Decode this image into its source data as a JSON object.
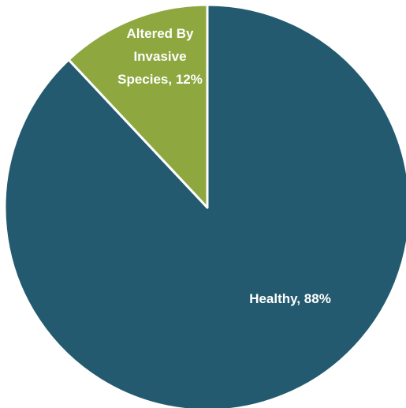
{
  "chart_data": {
    "type": "pie",
    "slices": [
      {
        "name": "Healthy",
        "value": 88,
        "label_lines": [
          "Healthy, 88%"
        ],
        "color": "#235a70"
      },
      {
        "name": "Altered By Invasive Species",
        "value": 12,
        "label_lines": [
          "Altered By",
          "Invasive",
          "Species, 12%"
        ],
        "color": "#8ea83f"
      }
    ],
    "start_angle_deg": 0,
    "direction": "clockwise",
    "slice_border_color": "#ffffff",
    "legend": "none"
  }
}
